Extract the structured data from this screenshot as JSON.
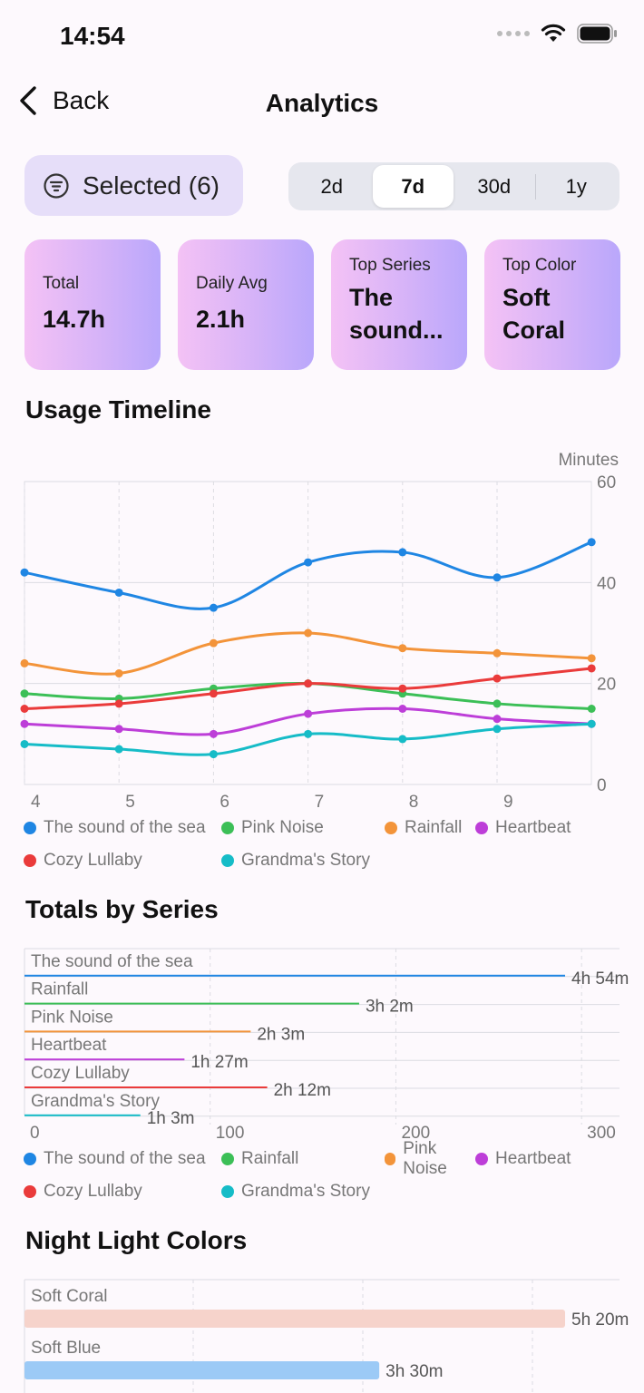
{
  "status_bar": {
    "time": "14:54"
  },
  "nav": {
    "back_label": "Back",
    "title": "Analytics"
  },
  "filter": {
    "selected_label": "Selected (6)"
  },
  "range_tabs": [
    {
      "label": "2d",
      "active": false
    },
    {
      "label": "7d",
      "active": true
    },
    {
      "label": "30d",
      "active": false
    },
    {
      "label": "1y",
      "active": false
    }
  ],
  "stats": [
    {
      "label": "Total",
      "value": "14.7h"
    },
    {
      "label": "Daily Avg",
      "value": "2.1h"
    },
    {
      "label": "Top Series",
      "value": "The sound..."
    },
    {
      "label": "Top Color",
      "value": "Soft Coral"
    }
  ],
  "sections": {
    "usage": "Usage Timeline",
    "totals": "Totals by Series",
    "colors": "Night Light Colors"
  },
  "chart_data": [
    {
      "type": "line",
      "title": "Usage Timeline",
      "ylabel": "Minutes",
      "ylim": [
        0,
        60
      ],
      "yticks": [
        0,
        20,
        40,
        60
      ],
      "xticks": [
        4,
        5,
        6,
        7,
        8,
        9
      ],
      "x": [
        4,
        5,
        6,
        7,
        8,
        9,
        10
      ],
      "series": [
        {
          "name": "The sound of the sea",
          "color": "#1f86e3",
          "values": [
            42,
            38,
            35,
            44,
            46,
            41,
            48
          ]
        },
        {
          "name": "Pink Noise",
          "color": "#3cbf57",
          "values": [
            18,
            17,
            19,
            20,
            18,
            16,
            15
          ]
        },
        {
          "name": "Rainfall",
          "color": "#f3943a",
          "values": [
            24,
            22,
            28,
            30,
            27,
            26,
            25
          ]
        },
        {
          "name": "Heartbeat",
          "color": "#bd3ed8",
          "values": [
            12,
            11,
            10,
            14,
            15,
            13,
            12
          ]
        },
        {
          "name": "Cozy Lullaby",
          "color": "#ea3b3b",
          "values": [
            15,
            16,
            18,
            20,
            19,
            21,
            23
          ]
        },
        {
          "name": "Grandma's Story",
          "color": "#16bcc7",
          "values": [
            8,
            7,
            6,
            10,
            9,
            11,
            12
          ]
        }
      ],
      "legend": "bottom"
    },
    {
      "type": "bar",
      "orientation": "horizontal",
      "title": "Totals by Series",
      "xlim": [
        0,
        300
      ],
      "xticks": [
        0,
        100,
        200,
        300
      ],
      "categories": [
        "The sound of the sea",
        "Rainfall",
        "Pink Noise",
        "Heartbeat",
        "Cozy Lullaby",
        "Grandma's Story"
      ],
      "values": [
        294,
        182,
        123,
        87,
        132,
        63
      ],
      "value_labels": [
        "4h 54m",
        "3h 2m",
        "2h 3m",
        "1h 27m",
        "2h 12m",
        "1h 3m"
      ],
      "colors": [
        "#1f86e3",
        "#3cbf57",
        "#f3943a",
        "#bd3ed8",
        "#ea3b3b",
        "#16bcc7"
      ],
      "legend_items": [
        {
          "name": "The sound of the sea",
          "color": "#1f86e3"
        },
        {
          "name": "Rainfall",
          "color": "#3cbf57"
        },
        {
          "name": "Pink Noise",
          "color": "#f3943a"
        },
        {
          "name": "Heartbeat",
          "color": "#bd3ed8"
        },
        {
          "name": "Cozy Lullaby",
          "color": "#ea3b3b"
        },
        {
          "name": "Grandma's Story",
          "color": "#16bcc7"
        }
      ],
      "legend": "bottom"
    },
    {
      "type": "bar",
      "orientation": "horizontal",
      "title": "Night Light Colors",
      "categories": [
        "Soft Coral",
        "Soft Blue"
      ],
      "values": [
        320,
        210
      ],
      "value_labels": [
        "5h 20m",
        "3h 30m"
      ],
      "colors": [
        "#f6d3cb",
        "#9ccaf6"
      ]
    }
  ]
}
